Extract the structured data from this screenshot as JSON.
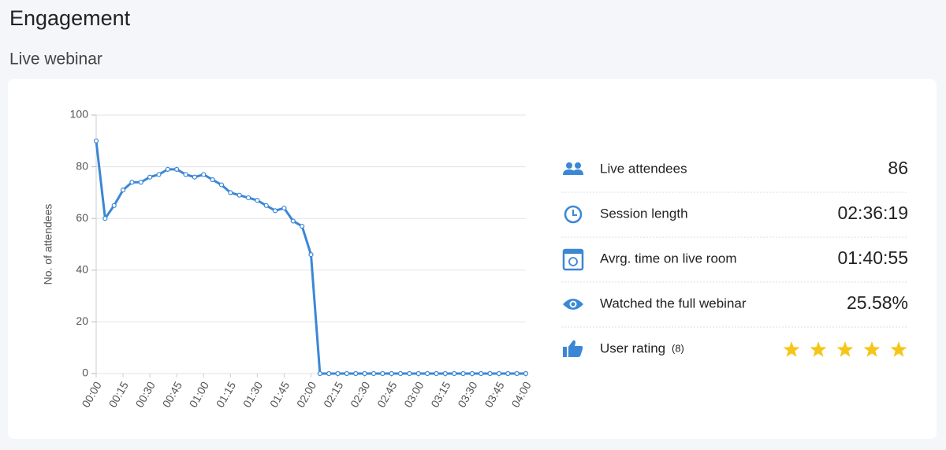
{
  "header": {
    "title": "Engagement",
    "subtitle": "Live webinar"
  },
  "chart_data": {
    "type": "line",
    "y_label": "No. of attendees",
    "categories": [
      "00:00",
      null,
      null,
      "00:15",
      null,
      null,
      "00:30",
      null,
      null,
      "00:45",
      null,
      null,
      "01:00",
      null,
      null,
      "01:15",
      null,
      null,
      "01:30",
      null,
      null,
      "01:45",
      null,
      null,
      "02:00",
      null,
      null,
      "02:15",
      null,
      null,
      "02:30",
      null,
      null,
      "02:45",
      null,
      null,
      "03:00",
      null,
      null,
      "03:15",
      null,
      null,
      "03:30",
      null,
      null,
      "03:45",
      null,
      null,
      "04:00"
    ],
    "values": [
      90,
      60,
      65,
      71,
      74,
      74,
      76,
      77,
      79,
      79,
      77,
      76,
      77,
      75,
      73,
      70,
      69,
      68,
      67,
      65,
      63,
      64,
      59,
      57,
      46,
      0,
      0,
      0,
      0,
      0,
      0,
      0,
      0,
      0,
      0,
      0,
      0,
      0,
      0,
      0,
      0,
      0,
      0,
      0,
      0,
      0,
      0,
      0,
      0
    ],
    "color": "#3b87d6",
    "ylim": [
      0,
      100
    ],
    "yticks": [
      0,
      20,
      40,
      60,
      80,
      100
    ],
    "grid": true
  },
  "stats": [
    {
      "label": "Live attendees",
      "value": "86"
    },
    {
      "label": "Session length",
      "value": "02:36:19"
    },
    {
      "label": "Avrg. time on live room",
      "value": "01:40:55"
    },
    {
      "label": "Watched the full webinar",
      "value": "25.58%"
    },
    {
      "label": "User rating",
      "count": "(8)",
      "stars": 5
    }
  ]
}
